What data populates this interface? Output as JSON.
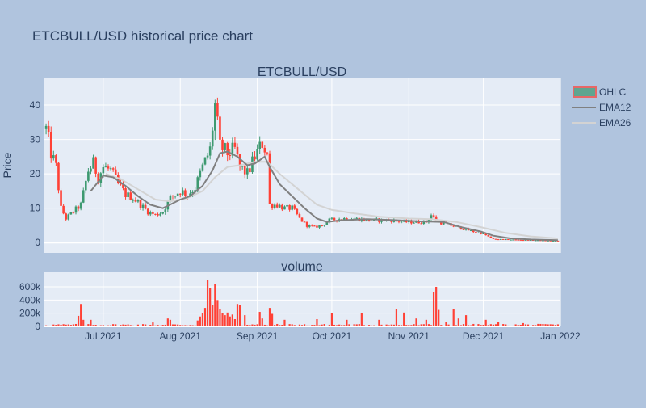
{
  "chart_data": {
    "type": "candlestick",
    "title": "ETCBULL/USD historical price chart",
    "colors": {
      "background": "#b0c4de",
      "plot_bg": "#e5ecf6",
      "grid": "#ffffff",
      "increasing": "#3d9970",
      "decreasing": "#ff4136",
      "volume_bar": "#ff4136",
      "ema12": "#808080",
      "ema26": "#d3d3d3",
      "text": "#2a3f5f"
    },
    "x_range": [
      "2021-06-07",
      "2022-01-01"
    ],
    "x_ticks": [
      {
        "date": "2021-07-01",
        "label": "Jul 2021"
      },
      {
        "date": "2021-08-01",
        "label": "Aug 2021"
      },
      {
        "date": "2021-09-01",
        "label": "Sep 2021"
      },
      {
        "date": "2021-10-01",
        "label": "Oct 2021"
      },
      {
        "date": "2021-11-01",
        "label": "Nov 2021"
      },
      {
        "date": "2021-12-01",
        "label": "Dec 2021"
      },
      {
        "date": "2022-01-01",
        "label": "Jan 2022"
      }
    ],
    "price_panel": {
      "subtitle": "ETCBULL/USD",
      "ylabel": "Price",
      "ylim": [
        -3,
        48
      ],
      "yticks": [
        0,
        10,
        20,
        30,
        40
      ],
      "price_path": [
        [
          "2021-06-08",
          33
        ],
        [
          "2021-06-10",
          26
        ],
        [
          "2021-06-12",
          22
        ],
        [
          "2021-06-14",
          10
        ],
        [
          "2021-06-16",
          7
        ],
        [
          "2021-06-19",
          9
        ],
        [
          "2021-06-22",
          11
        ],
        [
          "2021-06-25",
          21
        ],
        [
          "2021-06-27",
          23
        ],
        [
          "2021-06-29",
          19
        ],
        [
          "2021-07-01",
          22
        ],
        [
          "2021-07-04",
          21
        ],
        [
          "2021-07-07",
          17
        ],
        [
          "2021-07-10",
          14
        ],
        [
          "2021-07-13",
          13
        ],
        [
          "2021-07-16",
          11
        ],
        [
          "2021-07-19",
          9
        ],
        [
          "2021-07-22",
          8
        ],
        [
          "2021-07-25",
          9
        ],
        [
          "2021-07-28",
          13
        ],
        [
          "2021-08-01",
          15
        ],
        [
          "2021-08-04",
          14
        ],
        [
          "2021-08-07",
          16
        ],
        [
          "2021-08-10",
          22
        ],
        [
          "2021-08-13",
          27
        ],
        [
          "2021-08-15",
          40
        ],
        [
          "2021-08-17",
          28
        ],
        [
          "2021-08-20",
          26
        ],
        [
          "2021-08-23",
          27
        ],
        [
          "2021-08-25",
          22
        ],
        [
          "2021-08-28",
          20
        ],
        [
          "2021-08-31",
          25
        ],
        [
          "2021-09-03",
          29
        ],
        [
          "2021-09-05",
          26
        ],
        [
          "2021-09-06",
          11
        ],
        [
          "2021-09-09",
          11
        ],
        [
          "2021-09-12",
          10
        ],
        [
          "2021-09-15",
          10
        ],
        [
          "2021-09-18",
          7
        ],
        [
          "2021-09-21",
          5
        ],
        [
          "2021-09-24",
          4.5
        ],
        [
          "2021-09-27",
          5
        ],
        [
          "2021-09-30",
          6.5
        ],
        [
          "2021-10-05",
          7
        ],
        [
          "2021-10-10",
          7
        ],
        [
          "2021-10-15",
          6.5
        ],
        [
          "2021-10-20",
          6.5
        ],
        [
          "2021-10-25",
          6.5
        ],
        [
          "2021-10-30",
          6
        ],
        [
          "2021-11-04",
          6
        ],
        [
          "2021-11-08",
          6
        ],
        [
          "2021-11-10",
          8
        ],
        [
          "2021-11-13",
          6
        ],
        [
          "2021-11-18",
          5
        ],
        [
          "2021-11-23",
          4
        ],
        [
          "2021-11-28",
          3
        ],
        [
          "2021-12-01",
          2.5
        ],
        [
          "2021-12-05",
          1
        ],
        [
          "2021-12-10",
          0.9
        ],
        [
          "2021-12-15",
          0.8
        ],
        [
          "2021-12-20",
          0.7
        ],
        [
          "2021-12-25",
          0.6
        ],
        [
          "2021-12-31",
          0.5
        ]
      ],
      "ema12": [
        [
          "2021-06-26",
          15
        ],
        [
          "2021-07-01",
          19.5
        ],
        [
          "2021-07-05",
          19
        ],
        [
          "2021-07-10",
          16.5
        ],
        [
          "2021-07-15",
          13.5
        ],
        [
          "2021-07-20",
          11
        ],
        [
          "2021-07-25",
          10
        ],
        [
          "2021-08-01",
          12.5
        ],
        [
          "2021-08-05",
          13.5
        ],
        [
          "2021-08-10",
          16.5
        ],
        [
          "2021-08-14",
          21
        ],
        [
          "2021-08-17",
          26
        ],
        [
          "2021-08-20",
          26.5
        ],
        [
          "2021-08-24",
          25
        ],
        [
          "2021-08-28",
          22.5
        ],
        [
          "2021-08-31",
          23
        ],
        [
          "2021-09-04",
          25
        ],
        [
          "2021-09-06",
          22
        ],
        [
          "2021-09-10",
          17
        ],
        [
          "2021-09-15",
          13.5
        ],
        [
          "2021-09-20",
          10
        ],
        [
          "2021-09-25",
          7
        ],
        [
          "2021-09-29",
          6
        ],
        [
          "2021-10-05",
          6.5
        ],
        [
          "2021-10-15",
          6.8
        ],
        [
          "2021-10-25",
          6.6
        ],
        [
          "2021-11-05",
          6.2
        ],
        [
          "2021-11-15",
          6
        ],
        [
          "2021-11-22",
          4.5
        ],
        [
          "2021-11-30",
          3.2
        ],
        [
          "2021-12-05",
          2
        ],
        [
          "2021-12-12",
          1.2
        ],
        [
          "2021-12-20",
          0.9
        ],
        [
          "2021-12-31",
          0.7
        ]
      ],
      "ema26": [
        [
          "2021-07-02",
          20
        ],
        [
          "2021-07-08",
          18.5
        ],
        [
          "2021-07-15",
          15.5
        ],
        [
          "2021-07-22",
          12.5
        ],
        [
          "2021-07-28",
          12
        ],
        [
          "2021-08-04",
          13
        ],
        [
          "2021-08-10",
          15
        ],
        [
          "2021-08-15",
          19
        ],
        [
          "2021-08-20",
          22
        ],
        [
          "2021-08-25",
          22.5
        ],
        [
          "2021-08-31",
          23.5
        ],
        [
          "2021-09-05",
          23.5
        ],
        [
          "2021-09-10",
          20
        ],
        [
          "2021-09-15",
          17
        ],
        [
          "2021-09-20",
          14
        ],
        [
          "2021-09-25",
          11
        ],
        [
          "2021-10-01",
          9.5
        ],
        [
          "2021-10-10",
          8.5
        ],
        [
          "2021-10-20",
          7.5
        ],
        [
          "2021-11-01",
          7
        ],
        [
          "2021-11-10",
          6.8
        ],
        [
          "2021-11-20",
          6
        ],
        [
          "2021-11-30",
          4.5
        ],
        [
          "2021-12-10",
          2.8
        ],
        [
          "2021-12-20",
          1.8
        ],
        [
          "2021-12-31",
          1.2
        ]
      ]
    },
    "volume_panel": {
      "subtitle": "volume",
      "ylim": [
        0,
        820000
      ],
      "yticks": [
        {
          "value": 0,
          "label": "0"
        },
        {
          "value": 200000,
          "label": "200k"
        },
        {
          "value": 400000,
          "label": "400k"
        },
        {
          "value": 600000,
          "label": "600k"
        }
      ],
      "spikes": [
        [
          "2021-06-21",
          160000
        ],
        [
          "2021-06-22",
          340000
        ],
        [
          "2021-06-23",
          100000
        ],
        [
          "2021-06-26",
          100000
        ],
        [
          "2021-07-21",
          60000
        ],
        [
          "2021-07-27",
          120000
        ],
        [
          "2021-07-28",
          100000
        ],
        [
          "2021-08-08",
          90000
        ],
        [
          "2021-08-09",
          150000
        ],
        [
          "2021-08-10",
          200000
        ],
        [
          "2021-08-11",
          280000
        ],
        [
          "2021-08-12",
          700000
        ],
        [
          "2021-08-13",
          580000
        ],
        [
          "2021-08-14",
          320000
        ],
        [
          "2021-08-15",
          640000
        ],
        [
          "2021-08-16",
          400000
        ],
        [
          "2021-08-17",
          260000
        ],
        [
          "2021-08-18",
          200000
        ],
        [
          "2021-08-19",
          170000
        ],
        [
          "2021-08-20",
          210000
        ],
        [
          "2021-08-21",
          150000
        ],
        [
          "2021-08-22",
          180000
        ],
        [
          "2021-08-23",
          110000
        ],
        [
          "2021-08-24",
          340000
        ],
        [
          "2021-08-25",
          330000
        ],
        [
          "2021-08-27",
          170000
        ],
        [
          "2021-09-02",
          220000
        ],
        [
          "2021-09-03",
          120000
        ],
        [
          "2021-09-06",
          280000
        ],
        [
          "2021-09-07",
          190000
        ],
        [
          "2021-09-12",
          100000
        ],
        [
          "2021-09-25",
          110000
        ],
        [
          "2021-10-01",
          200000
        ],
        [
          "2021-10-07",
          100000
        ],
        [
          "2021-10-13",
          200000
        ],
        [
          "2021-10-20",
          100000
        ],
        [
          "2021-10-27",
          260000
        ],
        [
          "2021-10-30",
          210000
        ],
        [
          "2021-11-04",
          120000
        ],
        [
          "2021-11-08",
          100000
        ],
        [
          "2021-11-11",
          520000
        ],
        [
          "2021-11-12",
          600000
        ],
        [
          "2021-11-13",
          250000
        ],
        [
          "2021-11-16",
          70000
        ],
        [
          "2021-11-19",
          260000
        ],
        [
          "2021-11-21",
          120000
        ],
        [
          "2021-11-24",
          170000
        ],
        [
          "2021-12-02",
          100000
        ],
        [
          "2021-12-07",
          70000
        ],
        [
          "2021-12-17",
          50000
        ],
        [
          "2021-12-29",
          30000
        ]
      ]
    },
    "legend": {
      "placement": "top-right",
      "items": [
        {
          "label": "OHLC",
          "kind": "ohlc"
        },
        {
          "label": "EMA12",
          "kind": "line",
          "color": "#808080"
        },
        {
          "label": "EMA26",
          "kind": "line",
          "color": "#d3d3d3"
        }
      ]
    }
  }
}
